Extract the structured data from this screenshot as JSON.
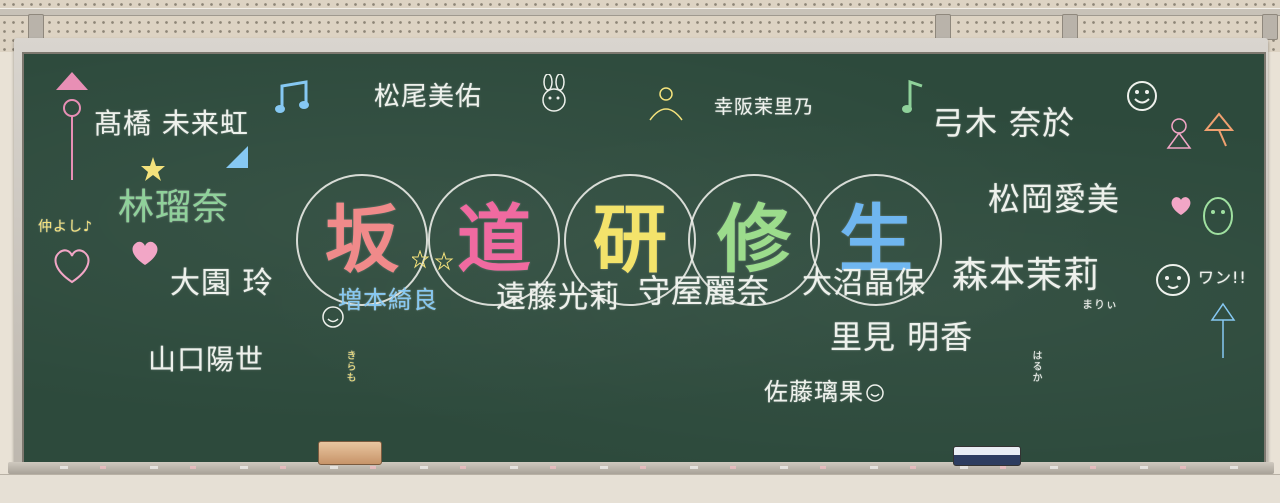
{
  "title": {
    "chars": [
      "坂",
      "道",
      "研",
      "修",
      "生"
    ],
    "colors": [
      "#f08a8a",
      "#f06aa0",
      "#f3e36b",
      "#9cdc8c",
      "#6fb6f0"
    ]
  },
  "names": {
    "takahashi": "髙橋 未来虹",
    "matsuo": "松尾美佑",
    "kosaka": "幸阪茉里乃",
    "yumiki": "弓木 奈於",
    "hayashi": "林瑠奈",
    "matsuoka": "松岡愛美",
    "oozono": "大園 玲",
    "masumoto": "増本綺良",
    "endo": "遠藤光莉",
    "moriya": "守屋麗奈",
    "oonuma": "大沼晶保",
    "morimoto": "森本茉莉",
    "satomi": "里見 明香",
    "yamaguchi": "山口陽世",
    "sato": "佐藤璃果"
  },
  "doodles": {
    "nakayoshi": "仲よし♪",
    "wan": "ワン!!",
    "mari": "まりぃ",
    "haruka": "はるか",
    "kira": "きらも"
  },
  "colors": {
    "board": "#2d4a3c",
    "chalk_white": "#eef1ec",
    "chalk_green": "#8fd19a",
    "chalk_blue": "#86c8f2",
    "chalk_pink": "#f2a6c6",
    "chalk_yellow": "#f4e27c"
  }
}
